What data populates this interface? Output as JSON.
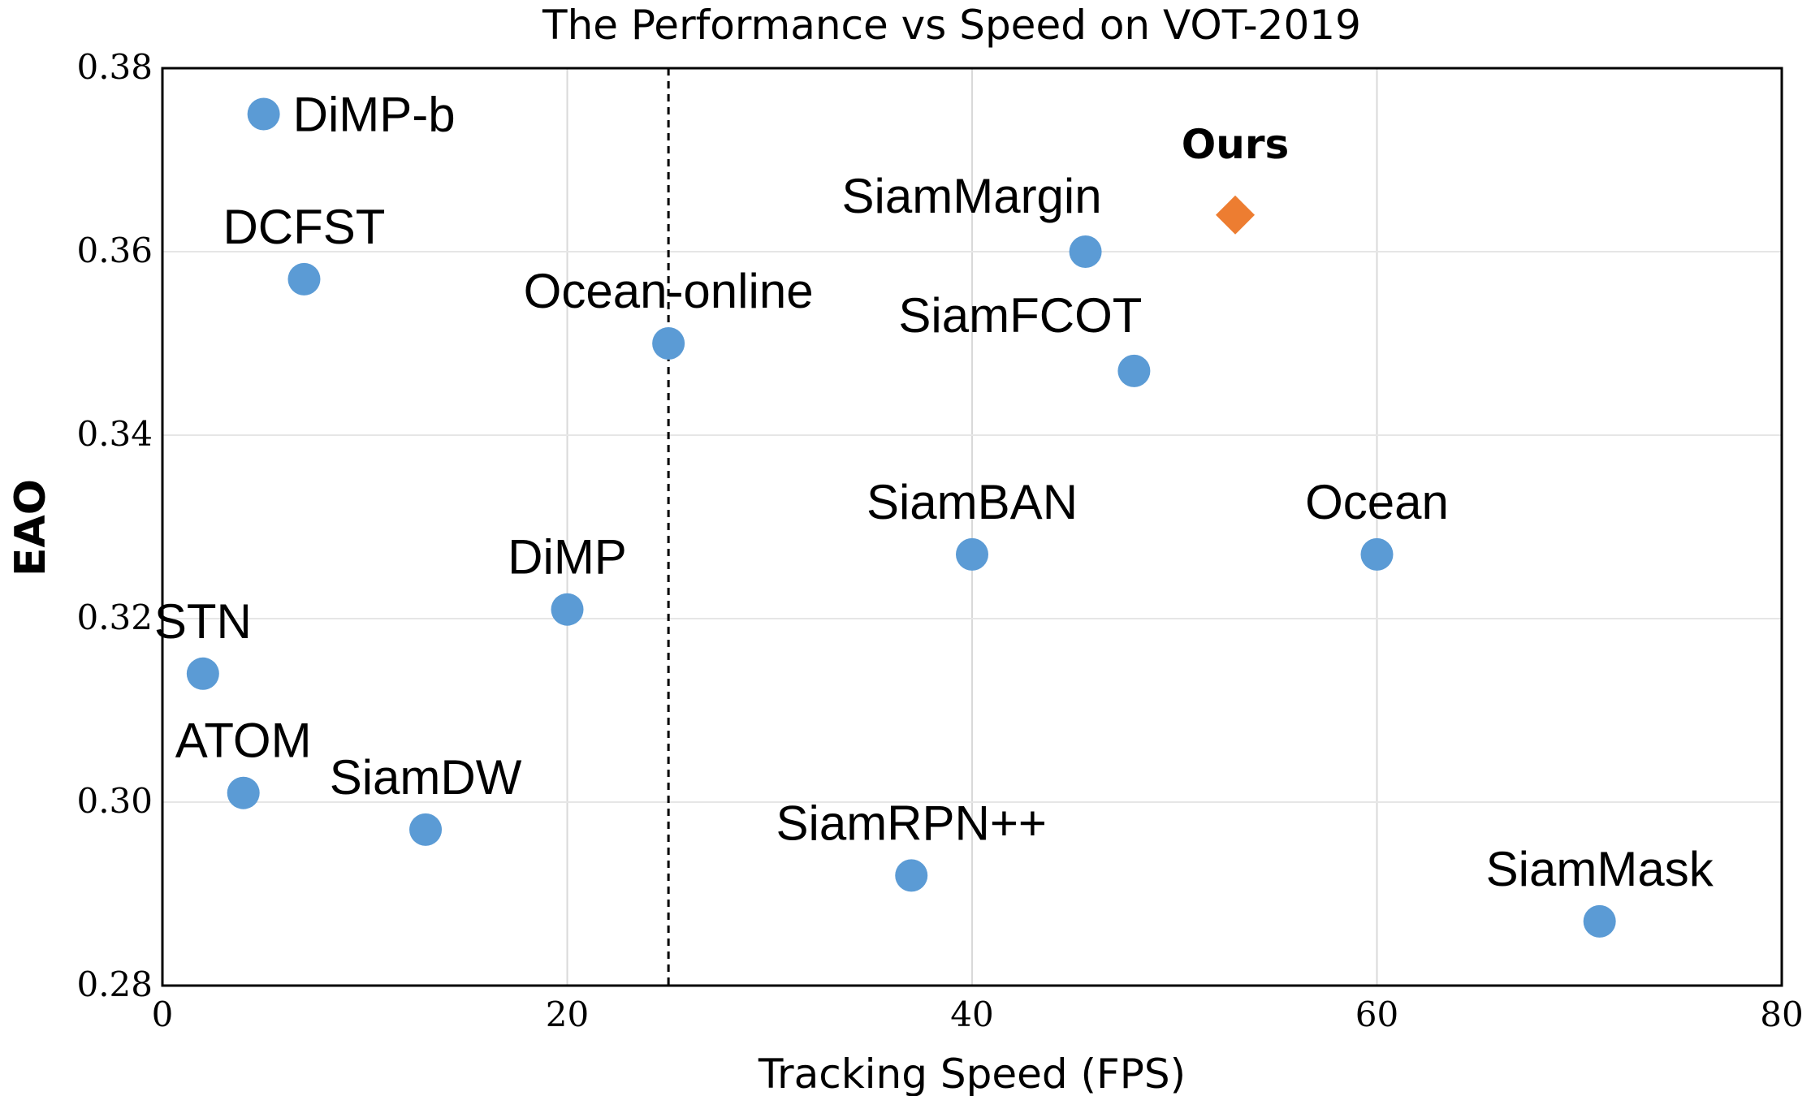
{
  "chart_data": {
    "type": "scatter",
    "title": "The Performance vs Speed on VOT-2019",
    "xlabel": "Tracking Speed (FPS)",
    "ylabel": "EAO",
    "xlim": [
      0,
      80
    ],
    "ylim": [
      0.28,
      0.38
    ],
    "xticks": [
      "0",
      "20",
      "40",
      "60",
      "80"
    ],
    "yticks": [
      "0.28",
      "0.30",
      "0.32",
      "0.34",
      "0.36",
      "0.38"
    ],
    "grid": "vertical and horizontal",
    "reference_line": {
      "x": 25,
      "style": "dashed"
    },
    "colors": {
      "others": "#5b9bd5",
      "ours": "#ed7d31"
    },
    "points": [
      {
        "label": "DiMP-b",
        "x": 5,
        "y": 0.375,
        "marker": "circle",
        "label_pos": "right"
      },
      {
        "label": "DCFST",
        "x": 7,
        "y": 0.357,
        "marker": "circle",
        "label_pos": "above"
      },
      {
        "label": "Ocean-online",
        "x": 25,
        "y": 0.35,
        "marker": "circle",
        "label_pos": "above"
      },
      {
        "label": "STN",
        "x": 2,
        "y": 0.314,
        "marker": "circle",
        "label_pos": "above"
      },
      {
        "label": "ATOM",
        "x": 4,
        "y": 0.301,
        "marker": "circle",
        "label_pos": "above"
      },
      {
        "label": "DiMP",
        "x": 20,
        "y": 0.321,
        "marker": "circle",
        "label_pos": "above"
      },
      {
        "label": "SiamDW",
        "x": 13,
        "y": 0.297,
        "marker": "circle",
        "label_pos": "above"
      },
      {
        "label": "SiamRPN++",
        "x": 37,
        "y": 0.292,
        "marker": "circle",
        "label_pos": "above"
      },
      {
        "label": "SiamBAN",
        "x": 40,
        "y": 0.327,
        "marker": "circle",
        "label_pos": "above"
      },
      {
        "label": "SiamMargin",
        "x": 45.6,
        "y": 0.36,
        "marker": "circle",
        "label_pos": "above-left"
      },
      {
        "label": "SiamFCOT",
        "x": 48,
        "y": 0.347,
        "marker": "circle",
        "label_pos": "above-left"
      },
      {
        "label": "Ocean",
        "x": 60,
        "y": 0.327,
        "marker": "circle",
        "label_pos": "above"
      },
      {
        "label": "SiamMask",
        "x": 71,
        "y": 0.287,
        "marker": "circle",
        "label_pos": "above"
      },
      {
        "label": "Ours",
        "x": 53,
        "y": 0.364,
        "marker": "diamond",
        "label_pos": "above",
        "bold": true
      }
    ]
  }
}
